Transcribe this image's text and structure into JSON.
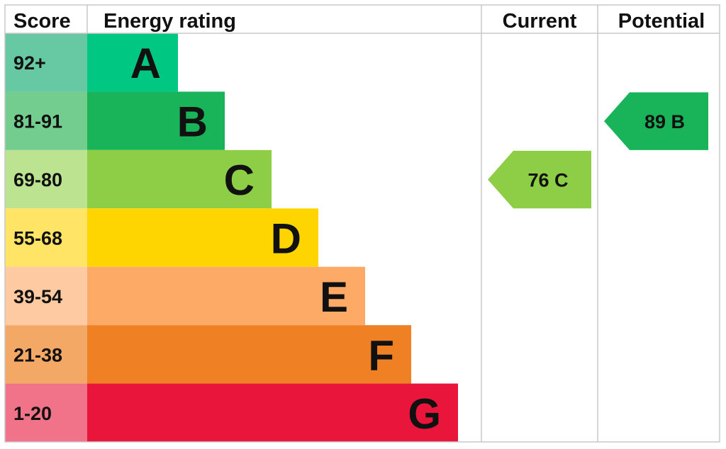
{
  "chart_data": {
    "type": "bar",
    "headers": {
      "score": "Score",
      "rating": "Energy rating",
      "current": "Current",
      "potential": "Potential"
    },
    "bands": [
      {
        "letter": "A",
        "range": "92+",
        "color": "#00c781",
        "score_color": "#66c9a3"
      },
      {
        "letter": "B",
        "range": "81-91",
        "color": "#19b459",
        "score_color": "#72cd8e"
      },
      {
        "letter": "C",
        "range": "69-80",
        "color": "#8dce46",
        "score_color": "#bce38f"
      },
      {
        "letter": "D",
        "range": "55-68",
        "color": "#ffd500",
        "score_color": "#ffe466"
      },
      {
        "letter": "E",
        "range": "39-54",
        "color": "#fcaa65",
        "score_color": "#fdcaa2"
      },
      {
        "letter": "F",
        "range": "21-38",
        "color": "#ef8023",
        "score_color": "#f4a865"
      },
      {
        "letter": "G",
        "range": "1-20",
        "color": "#e9153b",
        "score_color": "#f07389"
      }
    ],
    "current": {
      "score": 76,
      "letter": "C",
      "label": "76  C",
      "color": "#8dce46"
    },
    "potential": {
      "score": 89,
      "letter": "B",
      "label": "89  B",
      "color": "#19b459"
    }
  }
}
